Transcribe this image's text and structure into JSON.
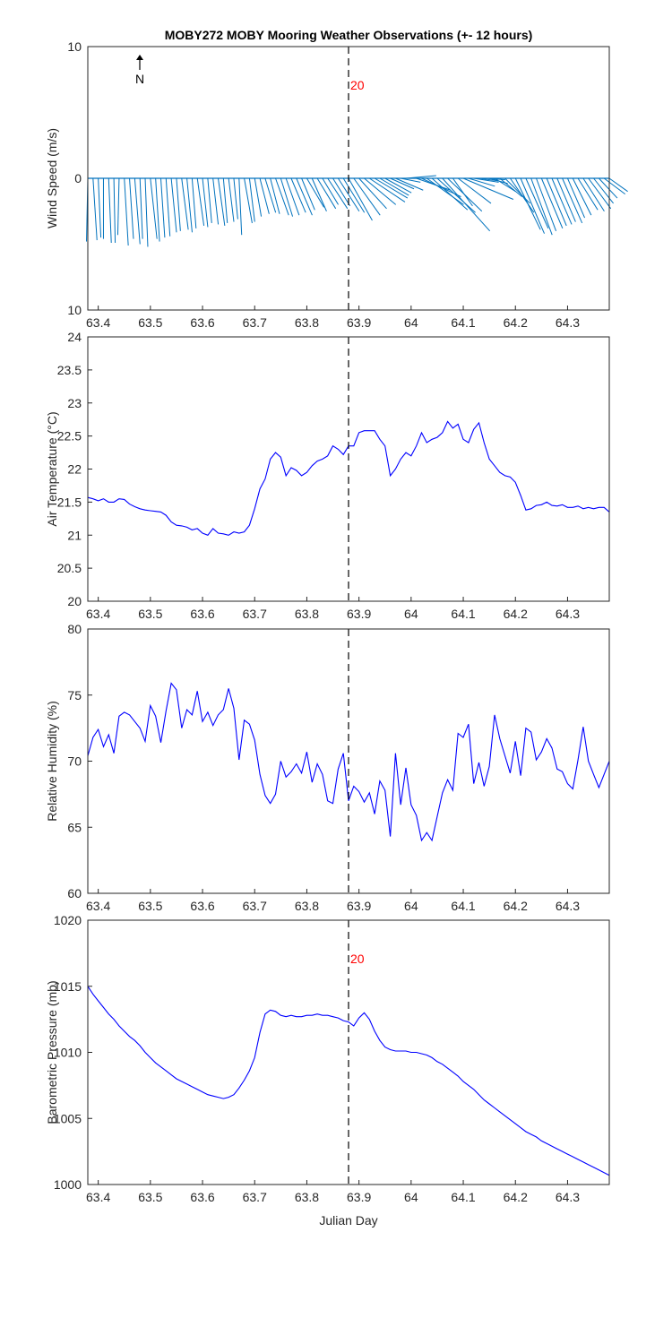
{
  "title": "MOBY272 MOBY Mooring Weather Observations (+- 12 hours)",
  "north_label": "N",
  "marker_day": 63.88,
  "marker_label": "20",
  "xlabel": "Julian Day",
  "x_ticks": [
    63.4,
    63.5,
    63.6,
    63.7,
    63.8,
    63.9,
    64,
    64.1,
    64.2,
    64.3
  ],
  "x_tick_labels": [
    "63.4",
    "63.5",
    "63.6",
    "63.7",
    "63.8",
    "63.9",
    "64",
    "64.1",
    "64.2",
    "64.3"
  ],
  "colors": {
    "series": "#0000ff",
    "wind": "#0072bd",
    "marker_label": "#ff0000",
    "axis": "#262626"
  },
  "chart_data": [
    {
      "id": "wind",
      "type": "quiver",
      "ylabel": "Wind Speed (m/s)",
      "xlim": [
        63.38,
        64.38
      ],
      "ylim": [
        -10,
        10
      ],
      "y_ticks": [
        10,
        0,
        -10
      ],
      "y_tick_labels": [
        "10",
        "0",
        "10"
      ],
      "vectors": [
        {
          "x": 63.38,
          "u": -0.1,
          "v": -4.8
        },
        {
          "x": 63.39,
          "u": 0.3,
          "v": -4.7
        },
        {
          "x": 63.4,
          "u": 0.2,
          "v": -4.5
        },
        {
          "x": 63.41,
          "u": 0.0,
          "v": -4.6
        },
        {
          "x": 63.42,
          "u": 0.2,
          "v": -4.9
        },
        {
          "x": 63.43,
          "u": 0.1,
          "v": -4.9
        },
        {
          "x": 63.44,
          "u": -0.1,
          "v": -4.3
        },
        {
          "x": 63.45,
          "u": 0.3,
          "v": -5.1
        },
        {
          "x": 63.46,
          "u": 0.3,
          "v": -4.6
        },
        {
          "x": 63.47,
          "u": 0.4,
          "v": -5.0
        },
        {
          "x": 63.48,
          "u": 0.2,
          "v": -4.6
        },
        {
          "x": 63.49,
          "u": 0.2,
          "v": -5.2
        },
        {
          "x": 63.5,
          "u": 0.5,
          "v": -4.6
        },
        {
          "x": 63.51,
          "u": 0.3,
          "v": -4.8
        },
        {
          "x": 63.52,
          "u": 0.3,
          "v": -4.5
        },
        {
          "x": 63.53,
          "u": 0.3,
          "v": -4.4
        },
        {
          "x": 63.54,
          "u": 0.4,
          "v": -4.1
        },
        {
          "x": 63.55,
          "u": 0.3,
          "v": -4.0
        },
        {
          "x": 63.56,
          "u": 0.5,
          "v": -3.9
        },
        {
          "x": 63.57,
          "u": 0.4,
          "v": -4.1
        },
        {
          "x": 63.58,
          "u": 0.3,
          "v": -3.8
        },
        {
          "x": 63.59,
          "u": 0.5,
          "v": -3.6
        },
        {
          "x": 63.6,
          "u": 0.4,
          "v": -3.7
        },
        {
          "x": 63.61,
          "u": 0.3,
          "v": -3.4
        },
        {
          "x": 63.62,
          "u": 0.4,
          "v": -3.5
        },
        {
          "x": 63.63,
          "u": 0.5,
          "v": -3.6
        },
        {
          "x": 63.64,
          "u": 0.3,
          "v": -3.4
        },
        {
          "x": 63.65,
          "u": 0.4,
          "v": -3.3
        },
        {
          "x": 63.66,
          "u": 0.3,
          "v": -3.1
        },
        {
          "x": 63.67,
          "u": 0.2,
          "v": -4.3
        },
        {
          "x": 63.68,
          "u": 0.6,
          "v": -3.4
        },
        {
          "x": 63.69,
          "u": 0.4,
          "v": -3.3
        },
        {
          "x": 63.7,
          "u": 0.5,
          "v": -2.9
        },
        {
          "x": 63.71,
          "u": 0.7,
          "v": -2.7
        },
        {
          "x": 63.72,
          "u": 0.8,
          "v": -2.6
        },
        {
          "x": 63.73,
          "u": 0.7,
          "v": -2.7
        },
        {
          "x": 63.74,
          "u": 1.0,
          "v": -2.8
        },
        {
          "x": 63.75,
          "u": 0.9,
          "v": -2.9
        },
        {
          "x": 63.76,
          "u": 1.0,
          "v": -2.8
        },
        {
          "x": 63.77,
          "u": 1.1,
          "v": -2.6
        },
        {
          "x": 63.78,
          "u": 1.2,
          "v": -2.8
        },
        {
          "x": 63.79,
          "u": 1.0,
          "v": -2.4
        },
        {
          "x": 63.8,
          "u": 1.3,
          "v": -2.2
        },
        {
          "x": 63.81,
          "u": 1.1,
          "v": -2.5
        },
        {
          "x": 63.82,
          "u": 1.4,
          "v": -2.3
        },
        {
          "x": 63.83,
          "u": 1.2,
          "v": -2.0
        },
        {
          "x": 63.84,
          "u": 1.5,
          "v": -2.3
        },
        {
          "x": 63.85,
          "u": 1.3,
          "v": -2.1
        },
        {
          "x": 63.86,
          "u": 1.6,
          "v": -2.5
        },
        {
          "x": 63.87,
          "u": 1.6,
          "v": -2.6
        },
        {
          "x": 63.88,
          "u": 1.8,
          "v": -3.2
        },
        {
          "x": 63.89,
          "u": 2.0,
          "v": -2.8
        },
        {
          "x": 63.9,
          "u": 2.1,
          "v": -2.3
        },
        {
          "x": 63.91,
          "u": 2.4,
          "v": -2.0
        },
        {
          "x": 63.92,
          "u": 2.7,
          "v": -1.8
        },
        {
          "x": 63.93,
          "u": 2.5,
          "v": -1.5
        },
        {
          "x": 63.94,
          "u": 2.2,
          "v": -1.3
        },
        {
          "x": 63.95,
          "u": 2.0,
          "v": -1.1
        },
        {
          "x": 63.96,
          "u": 1.8,
          "v": -0.8
        },
        {
          "x": 63.97,
          "u": 2.1,
          "v": -0.9
        },
        {
          "x": 63.98,
          "u": 1.5,
          "v": -0.3
        },
        {
          "x": 63.99,
          "u": 2.3,
          "v": 0.2
        },
        {
          "x": 64.0,
          "u": 1.1,
          "v": 0.0
        },
        {
          "x": 64.01,
          "u": 2.6,
          "v": -0.9
        },
        {
          "x": 64.02,
          "u": 3.0,
          "v": -1.4
        },
        {
          "x": 64.03,
          "u": 2.8,
          "v": -2.0
        },
        {
          "x": 64.04,
          "u": 2.7,
          "v": -2.4
        },
        {
          "x": 64.05,
          "u": 2.9,
          "v": -2.6
        },
        {
          "x": 64.06,
          "u": 3.6,
          "v": -4.0
        },
        {
          "x": 64.07,
          "u": 2.6,
          "v": -2.5
        },
        {
          "x": 64.08,
          "u": 1.5,
          "v": -2.1
        },
        {
          "x": 64.09,
          "u": 2.5,
          "v": -1.9
        },
        {
          "x": 64.1,
          "u": 3.8,
          "v": -1.6
        },
        {
          "x": 64.11,
          "u": 2.0,
          "v": -0.6
        },
        {
          "x": 64.12,
          "u": 1.9,
          "v": -0.3
        },
        {
          "x": 64.13,
          "u": 1.5,
          "v": -0.2
        },
        {
          "x": 64.14,
          "u": 1.6,
          "v": -0.1
        },
        {
          "x": 64.15,
          "u": 1.4,
          "v": -0.4
        },
        {
          "x": 64.16,
          "u": 1.6,
          "v": -1.0
        },
        {
          "x": 64.17,
          "u": 1.7,
          "v": -1.4
        },
        {
          "x": 64.18,
          "u": 1.9,
          "v": -1.9
        },
        {
          "x": 64.19,
          "u": 1.8,
          "v": -2.6
        },
        {
          "x": 64.2,
          "u": 1.9,
          "v": -3.9
        },
        {
          "x": 64.21,
          "u": 1.8,
          "v": -4.2
        },
        {
          "x": 64.22,
          "u": 1.7,
          "v": -3.8
        },
        {
          "x": 64.23,
          "u": 1.6,
          "v": -4.3
        },
        {
          "x": 64.24,
          "u": 1.5,
          "v": -4.0
        },
        {
          "x": 64.25,
          "u": 1.6,
          "v": -3.8
        },
        {
          "x": 64.26,
          "u": 1.5,
          "v": -3.6
        },
        {
          "x": 64.27,
          "u": 1.5,
          "v": -3.5
        },
        {
          "x": 64.28,
          "u": 1.4,
          "v": -3.3
        },
        {
          "x": 64.29,
          "u": 1.5,
          "v": -3.4
        },
        {
          "x": 64.3,
          "u": 1.3,
          "v": -3.0
        },
        {
          "x": 64.31,
          "u": 1.4,
          "v": -2.8
        },
        {
          "x": 64.32,
          "u": 1.5,
          "v": -2.4
        },
        {
          "x": 64.33,
          "u": 1.6,
          "v": -2.5
        },
        {
          "x": 64.34,
          "u": 1.7,
          "v": -2.3
        },
        {
          "x": 64.35,
          "u": 1.5,
          "v": -1.9
        },
        {
          "x": 64.36,
          "u": 1.4,
          "v": -1.5
        },
        {
          "x": 64.37,
          "u": 1.6,
          "v": -1.2
        },
        {
          "x": 64.38,
          "u": 1.4,
          "v": -1.0
        }
      ]
    },
    {
      "id": "airtemp",
      "type": "line",
      "ylabel": "Air Temperature (°C)",
      "xlim": [
        63.38,
        64.38
      ],
      "ylim": [
        20,
        24
      ],
      "y_ticks": [
        20,
        20.5,
        21,
        21.5,
        22,
        22.5,
        23,
        23.5,
        24
      ],
      "y_tick_labels": [
        "20",
        "20.5",
        "21",
        "21.5",
        "22",
        "22.5",
        "23",
        "23.5",
        "24"
      ],
      "x": [
        63.38,
        63.39,
        63.4,
        63.41,
        63.42,
        63.43,
        63.44,
        63.45,
        63.46,
        63.47,
        63.48,
        63.49,
        63.5,
        63.51,
        63.52,
        63.53,
        63.54,
        63.55,
        63.56,
        63.57,
        63.58,
        63.59,
        63.6,
        63.61,
        63.62,
        63.63,
        63.64,
        63.65,
        63.66,
        63.67,
        63.68,
        63.69,
        63.7,
        63.71,
        63.72,
        63.73,
        63.74,
        63.75,
        63.76,
        63.77,
        63.78,
        63.79,
        63.8,
        63.81,
        63.82,
        63.83,
        63.84,
        63.85,
        63.86,
        63.87,
        63.88,
        63.89,
        63.9,
        63.91,
        63.92,
        63.93,
        63.94,
        63.95,
        63.96,
        63.97,
        63.98,
        63.99,
        64.0,
        64.01,
        64.02,
        64.03,
        64.04,
        64.05,
        64.06,
        64.07,
        64.08,
        64.09,
        64.1,
        64.11,
        64.12,
        64.13,
        64.14,
        64.15,
        64.16,
        64.17,
        64.18,
        64.19,
        64.2,
        64.21,
        64.22,
        64.23,
        64.24,
        64.25,
        64.26,
        64.27,
        64.28,
        64.29,
        64.3,
        64.31,
        64.32,
        64.33,
        64.34,
        64.35,
        64.36,
        64.37,
        64.38
      ],
      "y": [
        21.57,
        21.55,
        21.52,
        21.55,
        21.5,
        21.5,
        21.55,
        21.54,
        21.47,
        21.43,
        21.4,
        21.38,
        21.37,
        21.36,
        21.35,
        21.3,
        21.2,
        21.15,
        21.14,
        21.12,
        21.08,
        21.1,
        21.03,
        21.0,
        21.1,
        21.03,
        21.02,
        21.0,
        21.05,
        21.03,
        21.05,
        21.15,
        21.4,
        21.7,
        21.85,
        22.15,
        22.25,
        22.18,
        21.9,
        22.02,
        21.98,
        21.9,
        21.95,
        22.05,
        22.12,
        22.15,
        22.2,
        22.35,
        22.3,
        22.22,
        22.35,
        22.35,
        22.55,
        22.58,
        22.58,
        22.58,
        22.45,
        22.35,
        21.9,
        22.0,
        22.15,
        22.25,
        22.2,
        22.35,
        22.55,
        22.4,
        22.45,
        22.48,
        22.55,
        22.72,
        22.62,
        22.68,
        22.45,
        22.4,
        22.6,
        22.7,
        22.4,
        22.15,
        22.05,
        21.95,
        21.9,
        21.88,
        21.8,
        21.6,
        21.38,
        21.4,
        21.45,
        21.46,
        21.5,
        21.45,
        21.44,
        21.46,
        21.42,
        21.42,
        21.44,
        21.4,
        21.42,
        21.4,
        21.42,
        21.42,
        21.35
      ]
    },
    {
      "id": "humidity",
      "type": "line",
      "ylabel": "Relative Humidity (%)",
      "xlim": [
        63.38,
        64.38
      ],
      "ylim": [
        60,
        80
      ],
      "y_ticks": [
        60,
        65,
        70,
        75,
        80
      ],
      "y_tick_labels": [
        "60",
        "65",
        "70",
        "75",
        "80"
      ],
      "x": [
        63.38,
        63.39,
        63.4,
        63.41,
        63.42,
        63.43,
        63.44,
        63.45,
        63.46,
        63.47,
        63.48,
        63.49,
        63.5,
        63.51,
        63.52,
        63.53,
        63.54,
        63.55,
        63.56,
        63.57,
        63.58,
        63.59,
        63.6,
        63.61,
        63.62,
        63.63,
        63.64,
        63.65,
        63.66,
        63.67,
        63.68,
        63.69,
        63.7,
        63.71,
        63.72,
        63.73,
        63.74,
        63.75,
        63.76,
        63.77,
        63.78,
        63.79,
        63.8,
        63.81,
        63.82,
        63.83,
        63.84,
        63.85,
        63.86,
        63.87,
        63.88,
        63.89,
        63.9,
        63.91,
        63.92,
        63.93,
        63.94,
        63.95,
        63.96,
        63.97,
        63.98,
        63.99,
        64.0,
        64.01,
        64.02,
        64.03,
        64.04,
        64.05,
        64.06,
        64.07,
        64.08,
        64.09,
        64.1,
        64.11,
        64.12,
        64.13,
        64.14,
        64.15,
        64.16,
        64.17,
        64.18,
        64.19,
        64.2,
        64.21,
        64.22,
        64.23,
        64.24,
        64.25,
        64.26,
        64.27,
        64.28,
        64.29,
        64.3,
        64.31,
        64.32,
        64.33,
        64.34,
        64.35,
        64.36,
        64.37,
        64.38
      ],
      "y": [
        70.4,
        71.8,
        72.4,
        71.1,
        72.0,
        70.6,
        73.4,
        73.7,
        73.5,
        73.0,
        72.5,
        71.5,
        74.2,
        73.4,
        71.4,
        73.8,
        75.9,
        75.4,
        72.5,
        73.9,
        73.5,
        75.3,
        73.0,
        73.7,
        72.7,
        73.5,
        73.9,
        75.5,
        74.0,
        70.1,
        73.1,
        72.8,
        71.6,
        69.0,
        67.4,
        66.8,
        67.5,
        70.0,
        68.8,
        69.2,
        69.8,
        69.1,
        70.7,
        68.4,
        69.8,
        69.0,
        67.0,
        66.8,
        69.4,
        70.6,
        67.0,
        68.1,
        67.7,
        66.9,
        67.6,
        66.0,
        68.5,
        67.8,
        64.3,
        70.6,
        66.7,
        69.5,
        66.7,
        65.9,
        64.0,
        64.6,
        64.0,
        65.8,
        67.6,
        68.6,
        67.8,
        72.1,
        71.8,
        72.8,
        68.3,
        69.9,
        68.1,
        69.6,
        73.5,
        71.7,
        70.4,
        69.1,
        71.5,
        68.9,
        72.5,
        72.2,
        70.1,
        70.7,
        71.7,
        71.0,
        69.4,
        69.2,
        68.3,
        67.9,
        70.1,
        72.6,
        70.0,
        69.0,
        68.0,
        69.0,
        70.0
      ]
    },
    {
      "id": "pressure",
      "type": "line",
      "ylabel": "Barometric Pressure (mb)",
      "xlim": [
        63.38,
        64.38
      ],
      "ylim": [
        1000,
        1020
      ],
      "y_ticks": [
        1000,
        1005,
        1010,
        1015,
        1020
      ],
      "y_tick_labels": [
        "1000",
        "1005",
        "1010",
        "1015",
        "1020"
      ],
      "x": [
        63.38,
        63.39,
        63.4,
        63.41,
        63.42,
        63.43,
        63.44,
        63.45,
        63.46,
        63.47,
        63.48,
        63.49,
        63.5,
        63.51,
        63.52,
        63.53,
        63.54,
        63.55,
        63.56,
        63.57,
        63.58,
        63.59,
        63.6,
        63.61,
        63.62,
        63.63,
        63.64,
        63.65,
        63.66,
        63.67,
        63.68,
        63.69,
        63.7,
        63.71,
        63.72,
        63.73,
        63.74,
        63.75,
        63.76,
        63.77,
        63.78,
        63.79,
        63.8,
        63.81,
        63.82,
        63.83,
        63.84,
        63.85,
        63.86,
        63.87,
        63.88,
        63.89,
        63.9,
        63.91,
        63.92,
        63.93,
        63.94,
        63.95,
        63.96,
        63.97,
        63.98,
        63.99,
        64.0,
        64.01,
        64.02,
        64.03,
        64.04,
        64.05,
        64.06,
        64.07,
        64.08,
        64.09,
        64.1,
        64.11,
        64.12,
        64.13,
        64.14,
        64.15,
        64.16,
        64.17,
        64.18,
        64.19,
        64.2,
        64.21,
        64.22,
        64.23,
        64.24,
        64.25,
        64.26,
        64.27,
        64.28,
        64.29,
        64.3,
        64.31,
        64.32,
        64.33,
        64.34,
        64.35,
        64.36,
        64.37,
        64.38
      ],
      "y": [
        1015.0,
        1014.4,
        1013.9,
        1013.4,
        1012.9,
        1012.5,
        1012.0,
        1011.6,
        1011.2,
        1010.9,
        1010.5,
        1010.0,
        1009.6,
        1009.2,
        1008.9,
        1008.6,
        1008.3,
        1008.0,
        1007.8,
        1007.6,
        1007.4,
        1007.2,
        1007.0,
        1006.8,
        1006.7,
        1006.6,
        1006.5,
        1006.6,
        1006.8,
        1007.3,
        1007.9,
        1008.6,
        1009.6,
        1011.5,
        1012.9,
        1013.2,
        1013.1,
        1012.8,
        1012.7,
        1012.8,
        1012.7,
        1012.7,
        1012.8,
        1012.8,
        1012.9,
        1012.8,
        1012.8,
        1012.7,
        1012.6,
        1012.4,
        1012.3,
        1012.0,
        1012.6,
        1013.0,
        1012.5,
        1011.6,
        1010.9,
        1010.4,
        1010.2,
        1010.1,
        1010.1,
        1010.1,
        1010.0,
        1010.0,
        1009.9,
        1009.8,
        1009.6,
        1009.3,
        1009.1,
        1008.8,
        1008.5,
        1008.2,
        1007.8,
        1007.5,
        1007.2,
        1006.8,
        1006.4,
        1006.1,
        1005.8,
        1005.5,
        1005.2,
        1004.9,
        1004.6,
        1004.3,
        1004.0,
        1003.8,
        1003.6,
        1003.3,
        1003.1,
        1002.9,
        1002.7,
        1002.5,
        1002.3,
        1002.1,
        1001.9,
        1001.7,
        1001.5,
        1001.3,
        1001.1,
        1000.9,
        1000.7
      ]
    }
  ]
}
